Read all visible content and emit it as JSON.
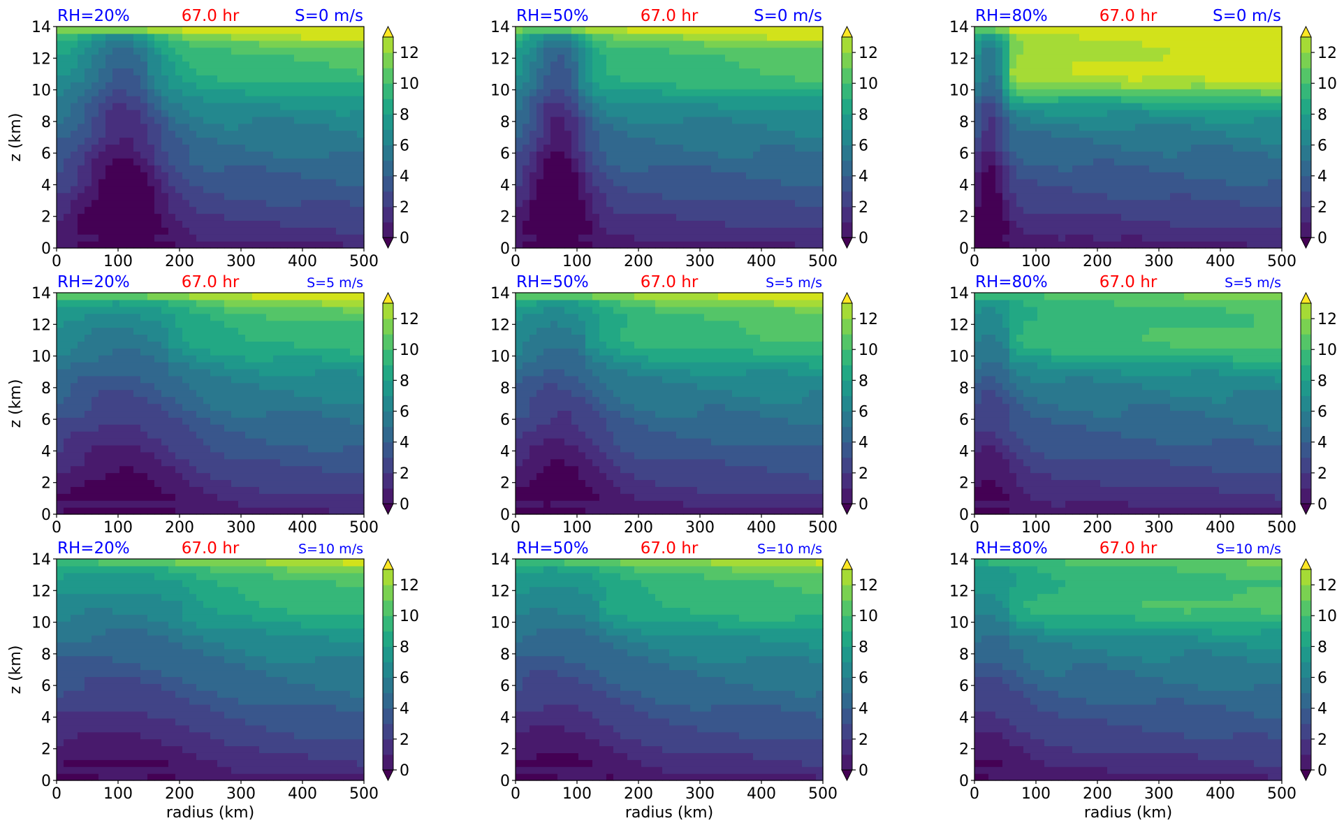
{
  "figure": {
    "xlabel": "radius (km)",
    "ylabel": "z (km)",
    "time_label": "67.0 hr",
    "colors": {
      "rh_label": "#0000ff",
      "shear_label": "#0000ff",
      "time_label": "#ff0000",
      "viridis_levels": [
        "#440154",
        "#481a6c",
        "#472f7d",
        "#414487",
        "#39568c",
        "#31688e",
        "#2a788e",
        "#23888e",
        "#1f988b",
        "#22a884",
        "#35b779",
        "#54c568",
        "#7ad151",
        "#a5db36",
        "#d2e21b",
        "#fde725"
      ]
    }
  },
  "chart_data": [
    {
      "type": "heatmap",
      "row": 0,
      "col": 0,
      "rh_label": "RH=20%",
      "time_label": "67.0 hr",
      "shear_label": "S=0 m/s",
      "xlim": [
        0,
        500
      ],
      "ylim": [
        0,
        14
      ],
      "xticks": [
        0,
        100,
        200,
        300,
        400,
        500
      ],
      "yticks": [
        0,
        2,
        4,
        6,
        8,
        10,
        12,
        14
      ],
      "colorbar": {
        "levels": [
          0,
          1,
          2,
          3,
          4,
          5,
          6,
          7,
          8,
          9,
          10,
          11,
          12,
          13
        ],
        "ticks": [
          0,
          2,
          4,
          6,
          8,
          10,
          12
        ],
        "extend": "both"
      },
      "xlabel": "",
      "ylabel": "z (km)"
    },
    {
      "type": "heatmap",
      "row": 0,
      "col": 1,
      "rh_label": "RH=50%",
      "time_label": "67.0 hr",
      "shear_label": "S=0 m/s",
      "xlim": [
        0,
        500
      ],
      "ylim": [
        0,
        14
      ],
      "xticks": [
        0,
        100,
        200,
        300,
        400,
        500
      ],
      "yticks": [
        0,
        2,
        4,
        6,
        8,
        10,
        12,
        14
      ],
      "colorbar": {
        "levels": [
          0,
          1,
          2,
          3,
          4,
          5,
          6,
          7,
          8,
          9,
          10,
          11,
          12,
          13
        ],
        "ticks": [
          0,
          2,
          4,
          6,
          8,
          10,
          12
        ],
        "extend": "both"
      },
      "xlabel": "",
      "ylabel": ""
    },
    {
      "type": "heatmap",
      "row": 0,
      "col": 2,
      "rh_label": "RH=80%",
      "time_label": "67.0 hr",
      "shear_label": "S=0 m/s",
      "xlim": [
        0,
        500
      ],
      "ylim": [
        0,
        14
      ],
      "xticks": [
        0,
        100,
        200,
        300,
        400,
        500
      ],
      "yticks": [
        0,
        2,
        4,
        6,
        8,
        10,
        12,
        14
      ],
      "colorbar": {
        "levels": [
          0,
          1,
          2,
          3,
          4,
          5,
          6,
          7,
          8,
          9,
          10,
          11,
          12,
          13
        ],
        "ticks": [
          0,
          2,
          4,
          6,
          8,
          10,
          12
        ],
        "extend": "both"
      },
      "xlabel": "",
      "ylabel": ""
    },
    {
      "type": "heatmap",
      "row": 1,
      "col": 0,
      "rh_label": "RH=20%",
      "time_label": "67.0 hr",
      "shear_label": "S=5 m/s",
      "xlim": [
        0,
        500
      ],
      "ylim": [
        0,
        14
      ],
      "xticks": [
        0,
        100,
        200,
        300,
        400,
        500
      ],
      "yticks": [
        0,
        2,
        4,
        6,
        8,
        10,
        12,
        14
      ],
      "colorbar": {
        "levels": [
          0,
          1,
          2,
          3,
          4,
          5,
          6,
          7,
          8,
          9,
          10,
          11,
          12,
          13
        ],
        "ticks": [
          0,
          2,
          4,
          6,
          8,
          10,
          12
        ],
        "extend": "both"
      },
      "xlabel": "",
      "ylabel": "z (km)"
    },
    {
      "type": "heatmap",
      "row": 1,
      "col": 1,
      "rh_label": "RH=50%",
      "time_label": "67.0 hr",
      "shear_label": "S=5 m/s",
      "xlim": [
        0,
        500
      ],
      "ylim": [
        0,
        14
      ],
      "xticks": [
        0,
        100,
        200,
        300,
        400,
        500
      ],
      "yticks": [
        0,
        2,
        4,
        6,
        8,
        10,
        12,
        14
      ],
      "colorbar": {
        "levels": [
          0,
          1,
          2,
          3,
          4,
          5,
          6,
          7,
          8,
          9,
          10,
          11,
          12,
          13
        ],
        "ticks": [
          0,
          2,
          4,
          6,
          8,
          10,
          12
        ],
        "extend": "both"
      },
      "xlabel": "",
      "ylabel": ""
    },
    {
      "type": "heatmap",
      "row": 1,
      "col": 2,
      "rh_label": "RH=80%",
      "time_label": "67.0 hr",
      "shear_label": "S=5 m/s",
      "xlim": [
        0,
        500
      ],
      "ylim": [
        0,
        14
      ],
      "xticks": [
        0,
        100,
        200,
        300,
        400,
        500
      ],
      "yticks": [
        0,
        2,
        4,
        6,
        8,
        10,
        12,
        14
      ],
      "colorbar": {
        "levels": [
          0,
          1,
          2,
          3,
          4,
          5,
          6,
          7,
          8,
          9,
          10,
          11,
          12,
          13
        ],
        "ticks": [
          0,
          2,
          4,
          6,
          8,
          10,
          12
        ],
        "extend": "both"
      },
      "xlabel": "",
      "ylabel": ""
    },
    {
      "type": "heatmap",
      "row": 2,
      "col": 0,
      "rh_label": "RH=20%",
      "time_label": "67.0 hr",
      "shear_label": "S=10 m/s",
      "xlim": [
        0,
        500
      ],
      "ylim": [
        0,
        14
      ],
      "xticks": [
        0,
        100,
        200,
        300,
        400,
        500
      ],
      "yticks": [
        0,
        2,
        4,
        6,
        8,
        10,
        12,
        14
      ],
      "colorbar": {
        "levels": [
          0,
          1,
          2,
          3,
          4,
          5,
          6,
          7,
          8,
          9,
          10,
          11,
          12,
          13
        ],
        "ticks": [
          0,
          2,
          4,
          6,
          8,
          10,
          12
        ],
        "extend": "both"
      },
      "xlabel": "radius (km)",
      "ylabel": "z (km)"
    },
    {
      "type": "heatmap",
      "row": 2,
      "col": 1,
      "rh_label": "RH=50%",
      "time_label": "67.0 hr",
      "shear_label": "S=10 m/s",
      "xlim": [
        0,
        500
      ],
      "ylim": [
        0,
        14
      ],
      "xticks": [
        0,
        100,
        200,
        300,
        400,
        500
      ],
      "yticks": [
        0,
        2,
        4,
        6,
        8,
        10,
        12,
        14
      ],
      "colorbar": {
        "levels": [
          0,
          1,
          2,
          3,
          4,
          5,
          6,
          7,
          8,
          9,
          10,
          11,
          12,
          13
        ],
        "ticks": [
          0,
          2,
          4,
          6,
          8,
          10,
          12
        ],
        "extend": "both"
      },
      "xlabel": "radius (km)",
      "ylabel": ""
    },
    {
      "type": "heatmap",
      "row": 2,
      "col": 2,
      "rh_label": "RH=80%",
      "time_label": "67.0 hr",
      "shear_label": "S=10 m/s",
      "xlim": [
        0,
        500
      ],
      "ylim": [
        0,
        14
      ],
      "xticks": [
        0,
        100,
        200,
        300,
        400,
        500
      ],
      "yticks": [
        0,
        2,
        4,
        6,
        8,
        10,
        12,
        14
      ],
      "colorbar": {
        "levels": [
          0,
          1,
          2,
          3,
          4,
          5,
          6,
          7,
          8,
          9,
          10,
          11,
          12,
          13
        ],
        "ticks": [
          0,
          2,
          4,
          6,
          8,
          10,
          12
        ],
        "extend": "both"
      },
      "xlabel": "radius (km)",
      "ylabel": ""
    }
  ]
}
